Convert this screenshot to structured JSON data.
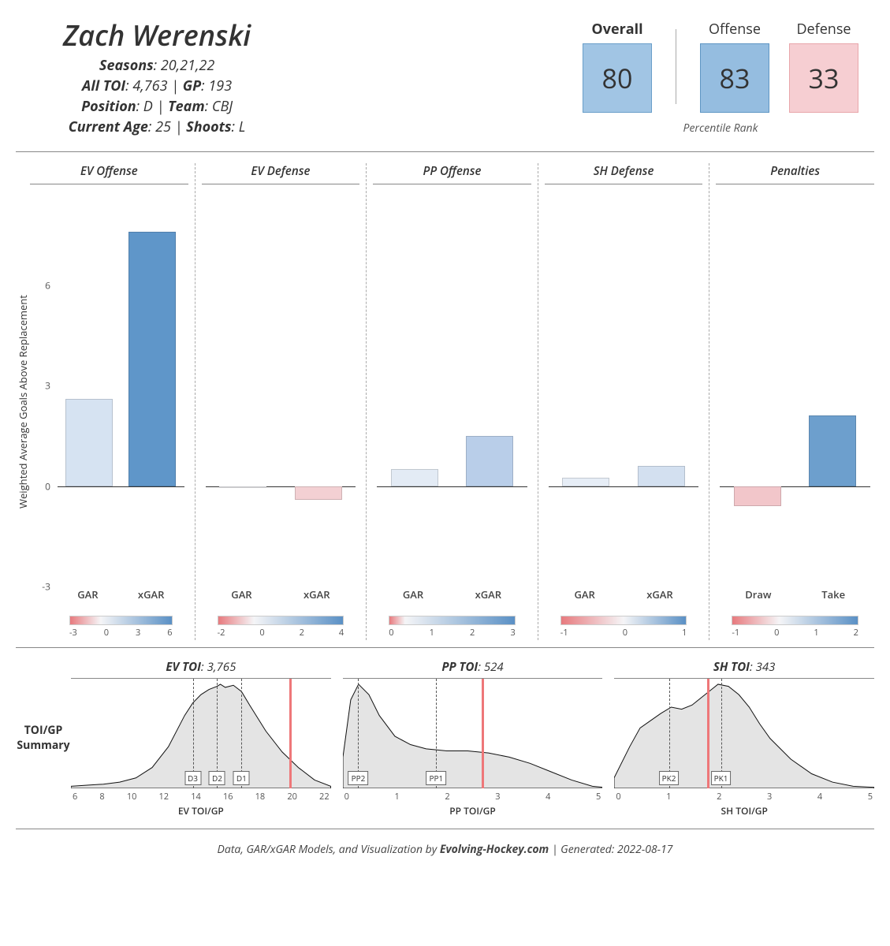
{
  "player": {
    "name": "Zach Werenski",
    "seasons_label": "Seasons",
    "seasons": "20,21,22",
    "toi_label": "All TOI",
    "toi": "4,763",
    "gp_label": "GP",
    "gp": "193",
    "position_label": "Position",
    "position": "D",
    "team_label": "Team",
    "team": "CBJ",
    "age_label": "Current Age",
    "age": "25",
    "shoots_label": "Shoots",
    "shoots": "L"
  },
  "percentiles": {
    "overall": {
      "label": "Overall",
      "value": "80",
      "bg": "#a1c5e4",
      "border": "#6a9fc9",
      "weight": "700"
    },
    "offense": {
      "label": "Offense",
      "value": "83",
      "bg": "#95bde0",
      "border": "#5f96c4",
      "weight": "400"
    },
    "defense": {
      "label": "Defense",
      "value": "33",
      "bg": "#f6ced2",
      "border": "#e8a6ab",
      "weight": "400"
    },
    "sublabel": "Percentile Rank"
  },
  "bar_chart": {
    "y_axis_label": "Weighted Average Goals Above Replacement",
    "ylim": [
      -3,
      9
    ],
    "yticks": [
      -3,
      0,
      3,
      6
    ],
    "panels": [
      {
        "title": "EV Offense",
        "xlabels": [
          "GAR",
          "xGAR"
        ],
        "bars": [
          {
            "value": 2.6,
            "color": "#d6e3f2"
          },
          {
            "value": 7.6,
            "color": "#5f96c9"
          }
        ],
        "gradient": {
          "min": -3,
          "max": 7,
          "ticks": [
            "-3",
            "0",
            "3",
            "6"
          ]
        }
      },
      {
        "title": "EV Defense",
        "xlabels": [
          "GAR",
          "xGAR"
        ],
        "bars": [
          {
            "value": -0.05,
            "color": "#eeeef0"
          },
          {
            "value": -0.4,
            "color": "#f3d0d3"
          }
        ],
        "gradient": {
          "min": -2,
          "max": 5,
          "ticks": [
            "-2",
            "0",
            "2",
            "4"
          ]
        }
      },
      {
        "title": "PP Offense",
        "xlabels": [
          "GAR",
          "xGAR"
        ],
        "bars": [
          {
            "value": 0.5,
            "color": "#e3ebf5"
          },
          {
            "value": 1.5,
            "color": "#b9cee9"
          }
        ],
        "gradient": {
          "min": -0.5,
          "max": 3.5,
          "ticks": [
            "0",
            "1",
            "2",
            "3"
          ]
        }
      },
      {
        "title": "SH Defense",
        "xlabels": [
          "GAR",
          "xGAR"
        ],
        "bars": [
          {
            "value": 0.25,
            "color": "#e6edf6"
          },
          {
            "value": 0.6,
            "color": "#d3e0f0"
          }
        ],
        "gradient": {
          "min": -1.5,
          "max": 1.5,
          "ticks": [
            "-1",
            "0",
            "1"
          ]
        }
      },
      {
        "title": "Penalties",
        "xlabels": [
          "Draw",
          "Take"
        ],
        "bars": [
          {
            "value": -0.6,
            "color": "#f2c6ca"
          },
          {
            "value": 2.1,
            "color": "#6d9fcd"
          }
        ],
        "gradient": {
          "min": -1.5,
          "max": 2.5,
          "ticks": [
            "-1",
            "0",
            "1",
            "2"
          ]
        }
      }
    ],
    "gradient_colors": {
      "neg": "#e77a7e",
      "mid": "#f5f5f7",
      "pos": "#5a90c5"
    }
  },
  "toi": {
    "section_label": "TOI/GP Summary",
    "panels": [
      {
        "title_prefix": "EV TOI",
        "title_value": "3,765",
        "xlabel": "EV TOI/GP",
        "xmin": 6,
        "xmax": 22,
        "xticks": [
          "6",
          "8",
          "10",
          "12",
          "14",
          "16",
          "18",
          "20",
          "22"
        ],
        "redline": 19.5,
        "guides": [
          {
            "x": 13.5,
            "label": "D3"
          },
          {
            "x": 15.0,
            "label": "D2"
          },
          {
            "x": 16.5,
            "label": "D1"
          }
        ],
        "density": [
          [
            6,
            0.02
          ],
          [
            7,
            0.03
          ],
          [
            8,
            0.04
          ],
          [
            9,
            0.06
          ],
          [
            10,
            0.1
          ],
          [
            11,
            0.2
          ],
          [
            12,
            0.4
          ],
          [
            13,
            0.7
          ],
          [
            13.5,
            0.82
          ],
          [
            14,
            0.9
          ],
          [
            14.5,
            0.95
          ],
          [
            15,
            0.98
          ],
          [
            15.2,
            1.0
          ],
          [
            15.5,
            0.97
          ],
          [
            16,
            0.99
          ],
          [
            16.5,
            0.93
          ],
          [
            17,
            0.8
          ],
          [
            18,
            0.55
          ],
          [
            19,
            0.35
          ],
          [
            20,
            0.2
          ],
          [
            21,
            0.08
          ],
          [
            22,
            0.02
          ]
        ]
      },
      {
        "title_prefix": "PP TOI",
        "title_value": "524",
        "xlabel": "PP TOI/GP",
        "xmin": 0,
        "xmax": 5,
        "xticks": [
          "0",
          "1",
          "2",
          "3",
          "4",
          "5"
        ],
        "redline": 2.7,
        "guides": [
          {
            "x": 0.3,
            "label": "PP2"
          },
          {
            "x": 1.8,
            "label": "PP1"
          }
        ],
        "density": [
          [
            0,
            0.3
          ],
          [
            0.15,
            0.85
          ],
          [
            0.3,
            1.0
          ],
          [
            0.5,
            0.9
          ],
          [
            0.7,
            0.7
          ],
          [
            1.0,
            0.5
          ],
          [
            1.3,
            0.42
          ],
          [
            1.6,
            0.38
          ],
          [
            2.0,
            0.36
          ],
          [
            2.4,
            0.36
          ],
          [
            2.8,
            0.34
          ],
          [
            3.2,
            0.3
          ],
          [
            3.6,
            0.24
          ],
          [
            4.0,
            0.16
          ],
          [
            4.4,
            0.08
          ],
          [
            4.8,
            0.02
          ],
          [
            5,
            0.01
          ]
        ]
      },
      {
        "title_prefix": "SH TOI",
        "title_value": "343",
        "xlabel": "SH TOI/GP",
        "xmin": 0,
        "xmax": 5,
        "xticks": [
          "0",
          "1",
          "2",
          "3",
          "4",
          "5"
        ],
        "redline": 1.8,
        "guides": [
          {
            "x": 1.05,
            "label": "PK2"
          },
          {
            "x": 2.05,
            "label": "PK1"
          }
        ],
        "density": [
          [
            0,
            0.1
          ],
          [
            0.3,
            0.4
          ],
          [
            0.5,
            0.58
          ],
          [
            0.7,
            0.65
          ],
          [
            0.9,
            0.72
          ],
          [
            1.1,
            0.78
          ],
          [
            1.3,
            0.76
          ],
          [
            1.5,
            0.8
          ],
          [
            1.7,
            0.88
          ],
          [
            1.9,
            0.96
          ],
          [
            2.0,
            1.0
          ],
          [
            2.2,
            0.98
          ],
          [
            2.4,
            0.9
          ],
          [
            2.6,
            0.78
          ],
          [
            2.8,
            0.62
          ],
          [
            3.0,
            0.48
          ],
          [
            3.4,
            0.28
          ],
          [
            3.8,
            0.14
          ],
          [
            4.2,
            0.06
          ],
          [
            4.6,
            0.02
          ],
          [
            5,
            0.01
          ]
        ]
      }
    ],
    "density_fill": "#e4e4e4",
    "density_stroke": "#111111"
  },
  "footer": {
    "text_prefix": "Data, GAR/xGAR Models, and Visualization by ",
    "site": "Evolving-Hockey.com",
    "text_mid": " | Generated: ",
    "date": "2022-08-17"
  }
}
